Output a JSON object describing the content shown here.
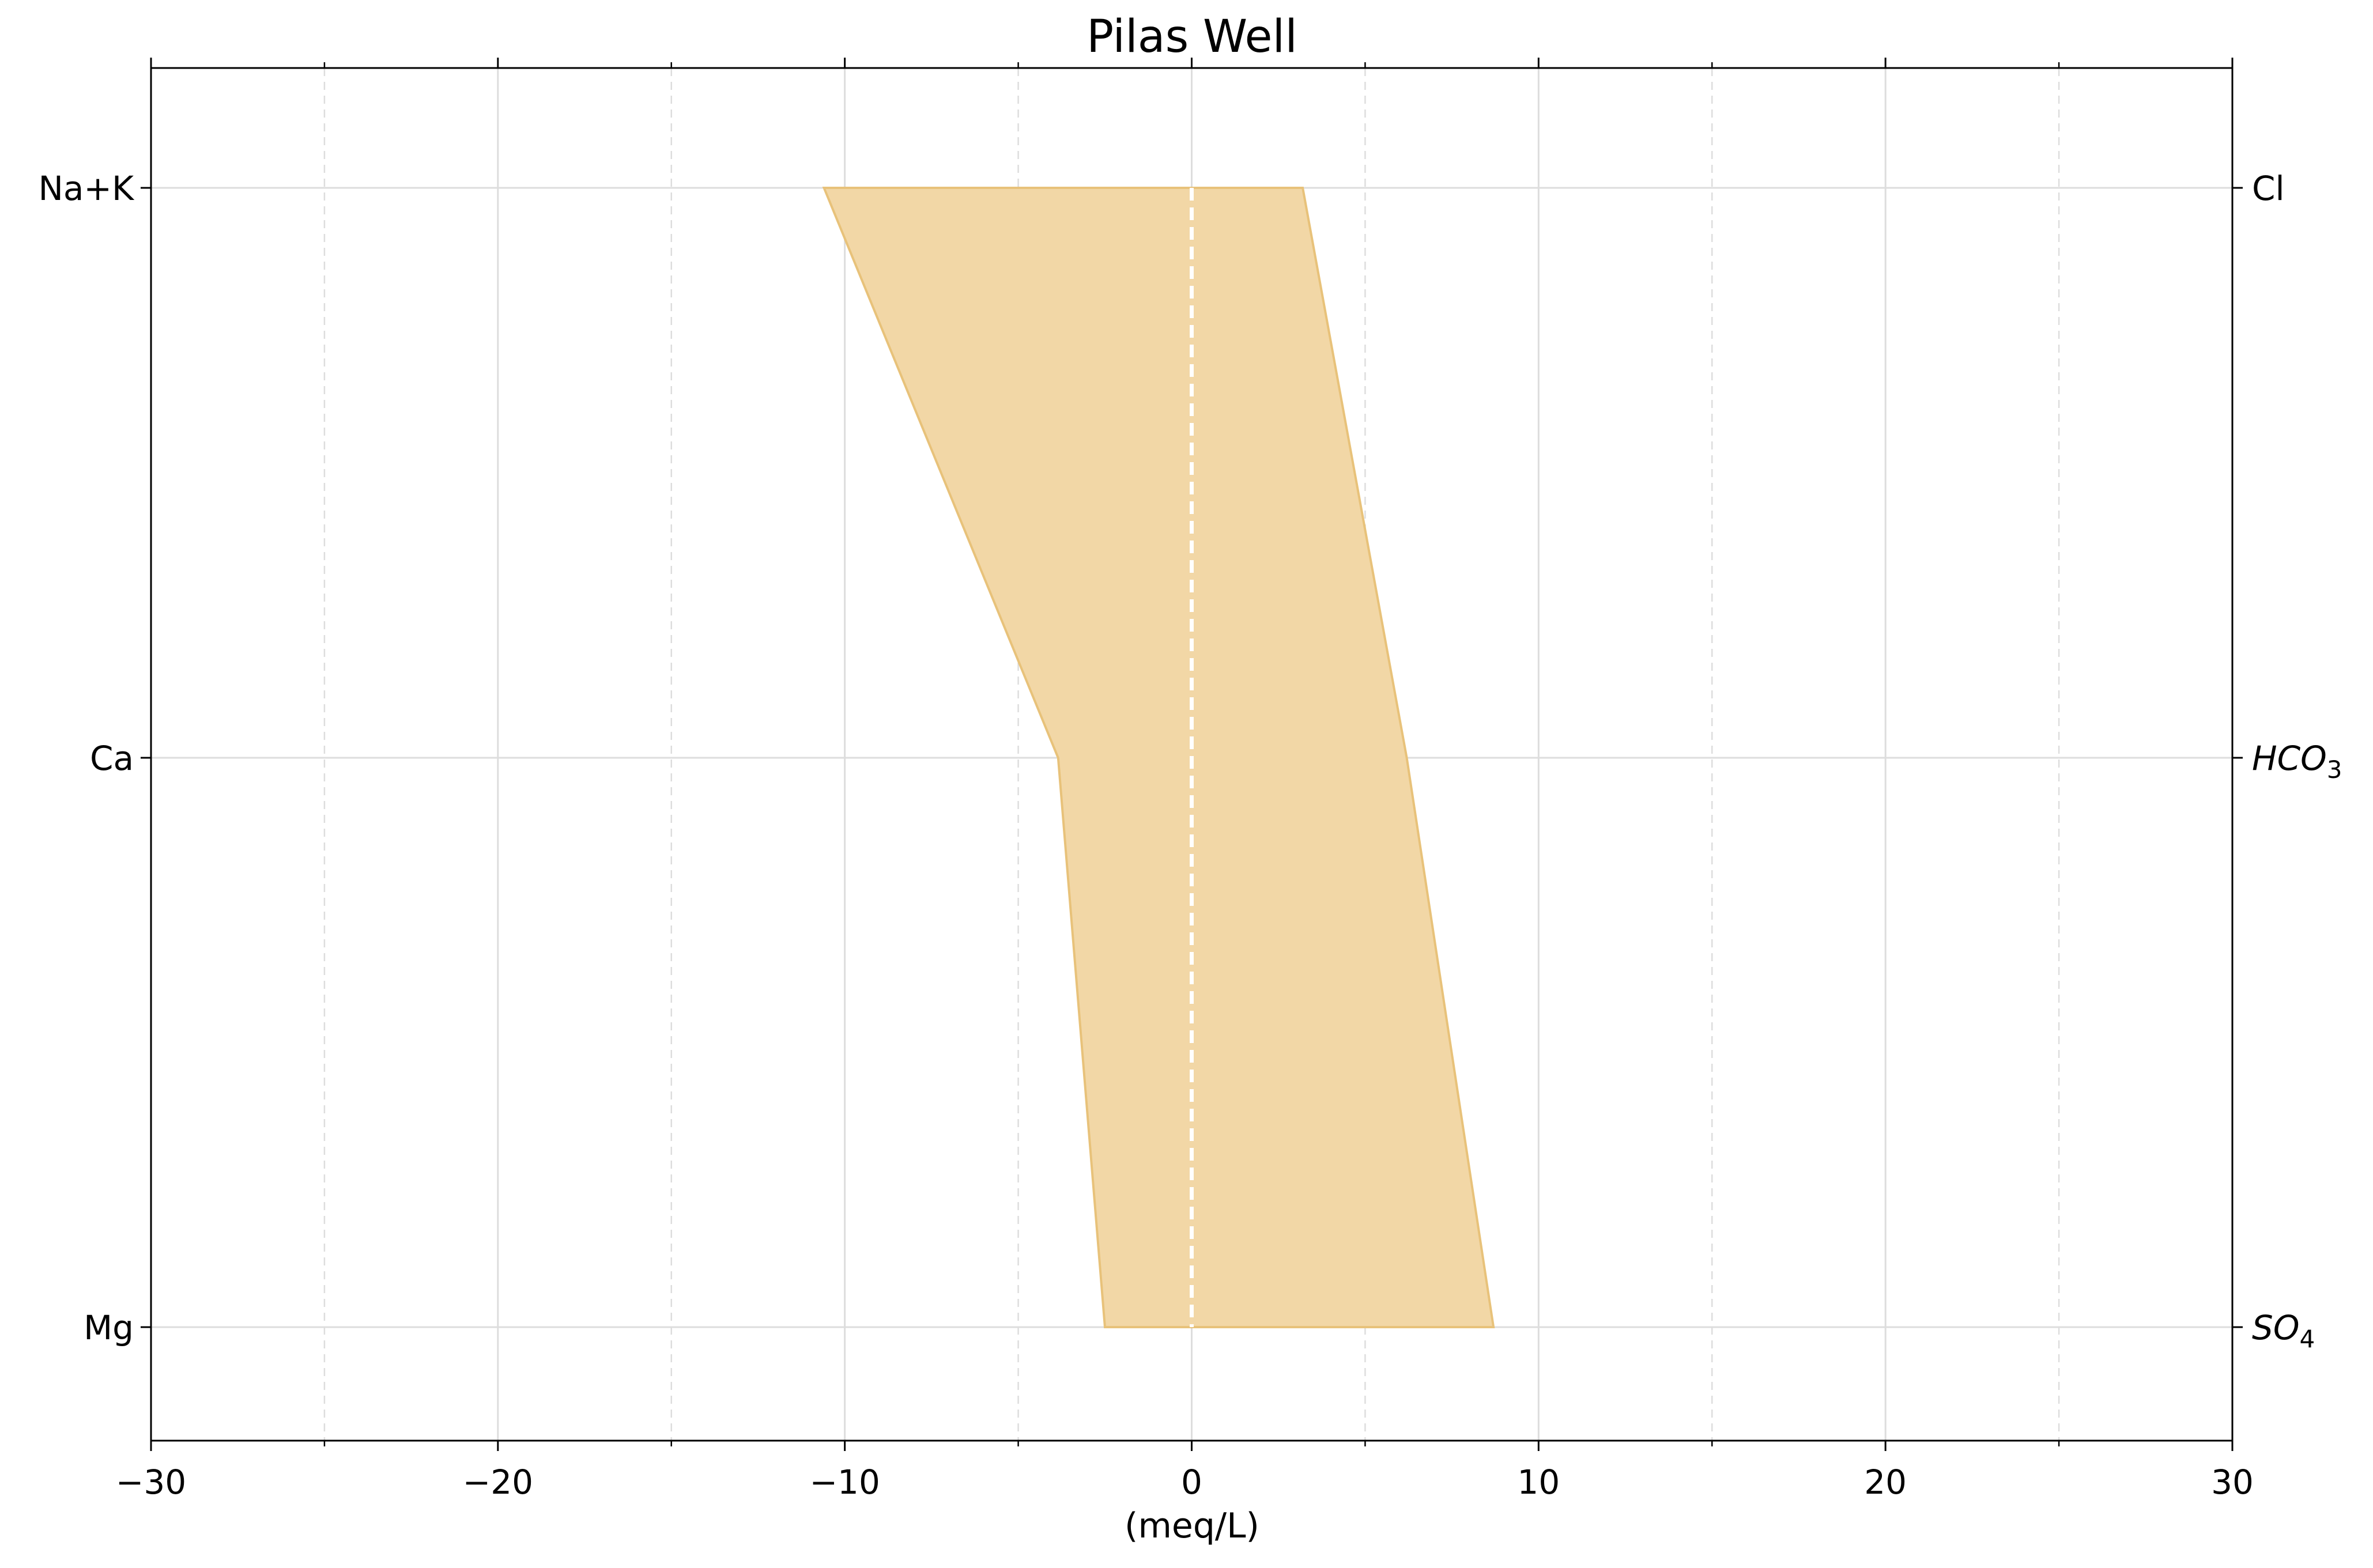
{
  "chart_data": {
    "type": "area",
    "title": "Pilas Well",
    "xlabel": "(meq/L)",
    "ylabel": "",
    "xlim": [
      -30,
      30
    ],
    "xticks": [
      -30,
      -20,
      -10,
      0,
      10,
      20,
      30
    ],
    "xtick_labels": [
      "−30",
      "−20",
      "−10",
      "0",
      "10",
      "20",
      "30"
    ],
    "minor_xticks": [
      -25,
      -15,
      -5,
      5,
      15,
      25
    ],
    "grid": true,
    "cations": {
      "labels": [
        "Na+K",
        "Ca",
        "Mg"
      ],
      "values": [
        -10.6,
        -3.85,
        -2.5
      ]
    },
    "anions": {
      "labels": [
        {
          "base": "Cl",
          "sub": ""
        },
        {
          "base": "HCO",
          "sub": "3"
        },
        {
          "base": "SO",
          "sub": "4"
        }
      ],
      "values": [
        3.2,
        6.2,
        8.7
      ]
    },
    "center_line_x": 0,
    "fill_color": "#f2d7a6",
    "edge_color": "#e8c27a",
    "center_line_color": "#ffffff",
    "grid_color": "#dddddd"
  }
}
